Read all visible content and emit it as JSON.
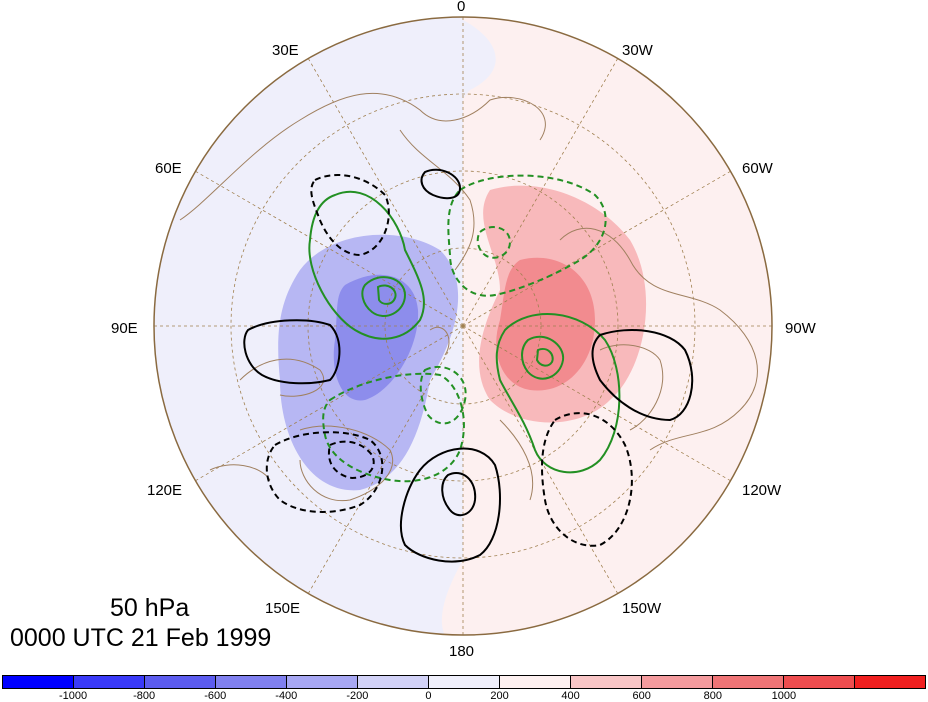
{
  "map": {
    "lon_labels": {
      "top": "0",
      "bottom": "180",
      "left": "90E",
      "right": "90W",
      "upper_left_1": "30E",
      "upper_left_2": "60E",
      "lower_left_1": "120E",
      "lower_left_2": "150E",
      "upper_right_1": "30W",
      "upper_right_2": "60W",
      "lower_right_1": "120W",
      "lower_right_2": "150W"
    },
    "colors": {
      "background_pos": "#fdf0f0",
      "background_neg": "#efeffb",
      "pos_200": "#f8b9bb",
      "pos_400": "#f28b8f",
      "neg_200": "#b7b7f3",
      "neg_400": "#8d8dec",
      "contour_green": "#239023",
      "contour_black": "#000000",
      "grid": "#a08050",
      "coast": "#a08060"
    }
  },
  "title": {
    "level": "50 hPa",
    "time": "0000 UTC 21 Feb 1999"
  },
  "colorbar": {
    "colors": [
      "#0000ff",
      "#3a3af8",
      "#5c5cef",
      "#8080ef",
      "#a7a7f3",
      "#d2d2f7",
      "#efeffb",
      "#fdf0f0",
      "#f8c5c6",
      "#f49b9e",
      "#ef7476",
      "#ee4d4f",
      "#f01f1f"
    ],
    "ticks": [
      "-1000",
      "-800",
      "-600",
      "-400",
      "-200",
      "0",
      "200",
      "400",
      "600",
      "800",
      "1000"
    ]
  }
}
